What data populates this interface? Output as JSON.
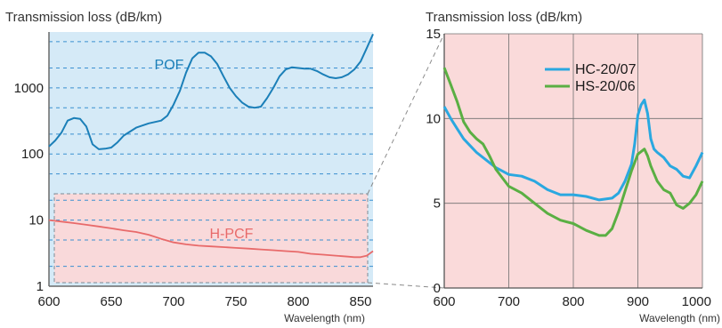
{
  "chart_data": [
    {
      "type": "line",
      "ylabel": "Transmission loss (dB/km)",
      "xlabel": "Wavelength (nm)",
      "xlim": [
        600,
        860
      ],
      "ylim": [
        1,
        7000
      ],
      "yscale": "log",
      "xticks": [
        600,
        650,
        700,
        750,
        800,
        850
      ],
      "yticks": [
        1,
        10,
        100,
        1000
      ],
      "ytick_labels": [
        "1",
        "10",
        "100",
        "1000"
      ],
      "background_color": "#d5eaf7",
      "grid": "dashed horizontal",
      "series": [
        {
          "name": "POF",
          "color": "#1b7fb8",
          "x": [
            600,
            605,
            610,
            615,
            620,
            625,
            630,
            635,
            640,
            645,
            650,
            655,
            660,
            670,
            680,
            690,
            695,
            700,
            705,
            710,
            715,
            720,
            725,
            730,
            735,
            740,
            745,
            750,
            755,
            760,
            765,
            770,
            775,
            780,
            785,
            790,
            795,
            800,
            805,
            810,
            815,
            820,
            825,
            830,
            835,
            840,
            845,
            850,
            855,
            860
          ],
          "y": [
            130,
            160,
            210,
            320,
            350,
            340,
            260,
            140,
            118,
            120,
            125,
            150,
            190,
            250,
            290,
            320,
            380,
            560,
            900,
            1700,
            2800,
            3400,
            3400,
            3000,
            2300,
            1500,
            1000,
            750,
            600,
            520,
            500,
            520,
            700,
            1000,
            1500,
            1900,
            2050,
            2000,
            1950,
            1950,
            1800,
            1600,
            1450,
            1400,
            1450,
            1600,
            1900,
            2500,
            4000,
            6500
          ]
        },
        {
          "name": "H-PCF",
          "color": "#e86a6a",
          "x": [
            600,
            610,
            620,
            630,
            640,
            650,
            660,
            670,
            680,
            690,
            700,
            710,
            720,
            730,
            740,
            750,
            760,
            770,
            780,
            790,
            800,
            810,
            820,
            830,
            840,
            845,
            850,
            855,
            860
          ],
          "y": [
            10,
            9.5,
            9,
            8.5,
            8,
            7.5,
            7,
            6.6,
            6,
            5.2,
            4.6,
            4.3,
            4.1,
            4,
            3.9,
            3.8,
            3.7,
            3.6,
            3.5,
            3.4,
            3.3,
            3.1,
            3,
            2.9,
            2.8,
            2.75,
            2.75,
            2.9,
            3.4
          ]
        }
      ]
    },
    {
      "type": "line",
      "ylabel": "Transmission loss (dB/km)",
      "xlabel": "Wavelength (nm)",
      "xlim": [
        600,
        1000
      ],
      "ylim": [
        0,
        15
      ],
      "xticks": [
        600,
        700,
        800,
        900,
        1000
      ],
      "yticks": [
        0,
        5,
        10,
        15
      ],
      "background_color": "#fadada",
      "grid": "solid",
      "legend": "top-right",
      "series": [
        {
          "name": "HC-20/07",
          "color": "#2aa8e0",
          "x": [
            600,
            610,
            620,
            630,
            640,
            650,
            660,
            670,
            680,
            690,
            700,
            720,
            740,
            760,
            780,
            800,
            820,
            840,
            860,
            870,
            880,
            890,
            895,
            900,
            905,
            910,
            915,
            920,
            925,
            930,
            940,
            950,
            960,
            970,
            980,
            990,
            1000
          ],
          "y": [
            10.7,
            10,
            9.4,
            8.8,
            8.4,
            8,
            7.7,
            7.4,
            7.1,
            6.9,
            6.7,
            6.6,
            6.3,
            5.8,
            5.5,
            5.5,
            5.4,
            5.2,
            5.3,
            5.6,
            6.3,
            7.3,
            8.5,
            10.2,
            10.8,
            11.1,
            10.3,
            8.8,
            8.2,
            8,
            7.7,
            7.2,
            7,
            6.6,
            6.5,
            7.2,
            8
          ]
        },
        {
          "name": "HS-20/06",
          "color": "#5aaf43",
          "x": [
            600,
            610,
            620,
            630,
            640,
            650,
            660,
            670,
            680,
            690,
            700,
            720,
            740,
            760,
            780,
            800,
            820,
            840,
            850,
            860,
            870,
            880,
            890,
            900,
            910,
            915,
            920,
            930,
            940,
            950,
            960,
            970,
            980,
            990,
            1000
          ],
          "y": [
            13,
            12,
            11,
            9.8,
            9.2,
            8.8,
            8.5,
            7.8,
            7,
            6.5,
            6,
            5.6,
            5,
            4.4,
            4,
            3.8,
            3.4,
            3.1,
            3.1,
            3.5,
            4.5,
            5.7,
            6.9,
            7.9,
            8.2,
            7.8,
            7.2,
            6.3,
            5.8,
            5.6,
            4.9,
            4.7,
            5,
            5.5,
            6.3
          ]
        }
      ]
    }
  ]
}
